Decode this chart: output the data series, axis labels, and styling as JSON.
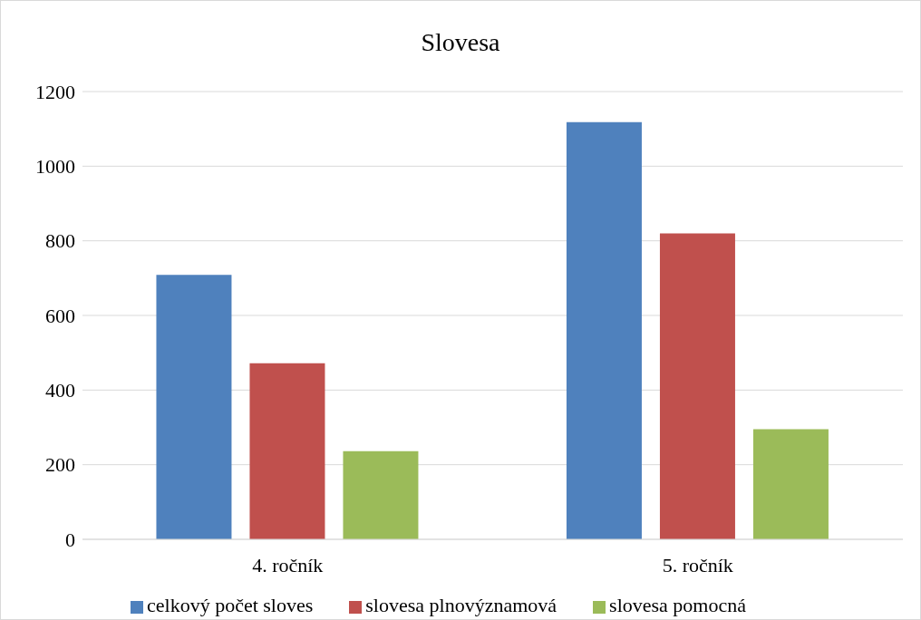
{
  "chart_data": {
    "type": "bar",
    "title": "Slovesa",
    "categories": [
      "4. ročník",
      "5. ročník"
    ],
    "series": [
      {
        "name": "celkový počet sloves",
        "color": "#4f81bd",
        "values": [
          709,
          1118
        ]
      },
      {
        "name": "slovesa plnovýznamová",
        "color": "#c0504d",
        "values": [
          472,
          820
        ]
      },
      {
        "name": "slovesa pomocná",
        "color": "#9bbb59",
        "values": [
          236,
          295
        ]
      }
    ],
    "ylim": [
      0,
      1200
    ],
    "yticks": [
      0,
      200,
      400,
      600,
      800,
      1000,
      1200
    ],
    "grid": "y",
    "legend": "bottom"
  }
}
